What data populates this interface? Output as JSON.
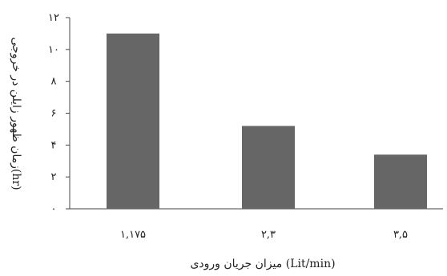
{
  "chart_data": {
    "type": "bar",
    "categories": [
      "۱,۱۷۵",
      "۲,۳",
      "۳,۵"
    ],
    "values": [
      11,
      5.2,
      3.4
    ],
    "ylim": [
      0,
      12
    ],
    "yticks": [
      0,
      2,
      4,
      6,
      8,
      10,
      12
    ],
    "ytick_labels": [
      "۰",
      "۲",
      "۴",
      "۶",
      "۸",
      "۱۰",
      "۱۲"
    ],
    "xlabel": "میزان جریان ورودی (Lit/min)",
    "ylabel": "زمان ظهور زایلن در خروجی(hr)",
    "bar_color": "#666666",
    "axis_color": "#444444",
    "grid": false,
    "legend": "none"
  }
}
